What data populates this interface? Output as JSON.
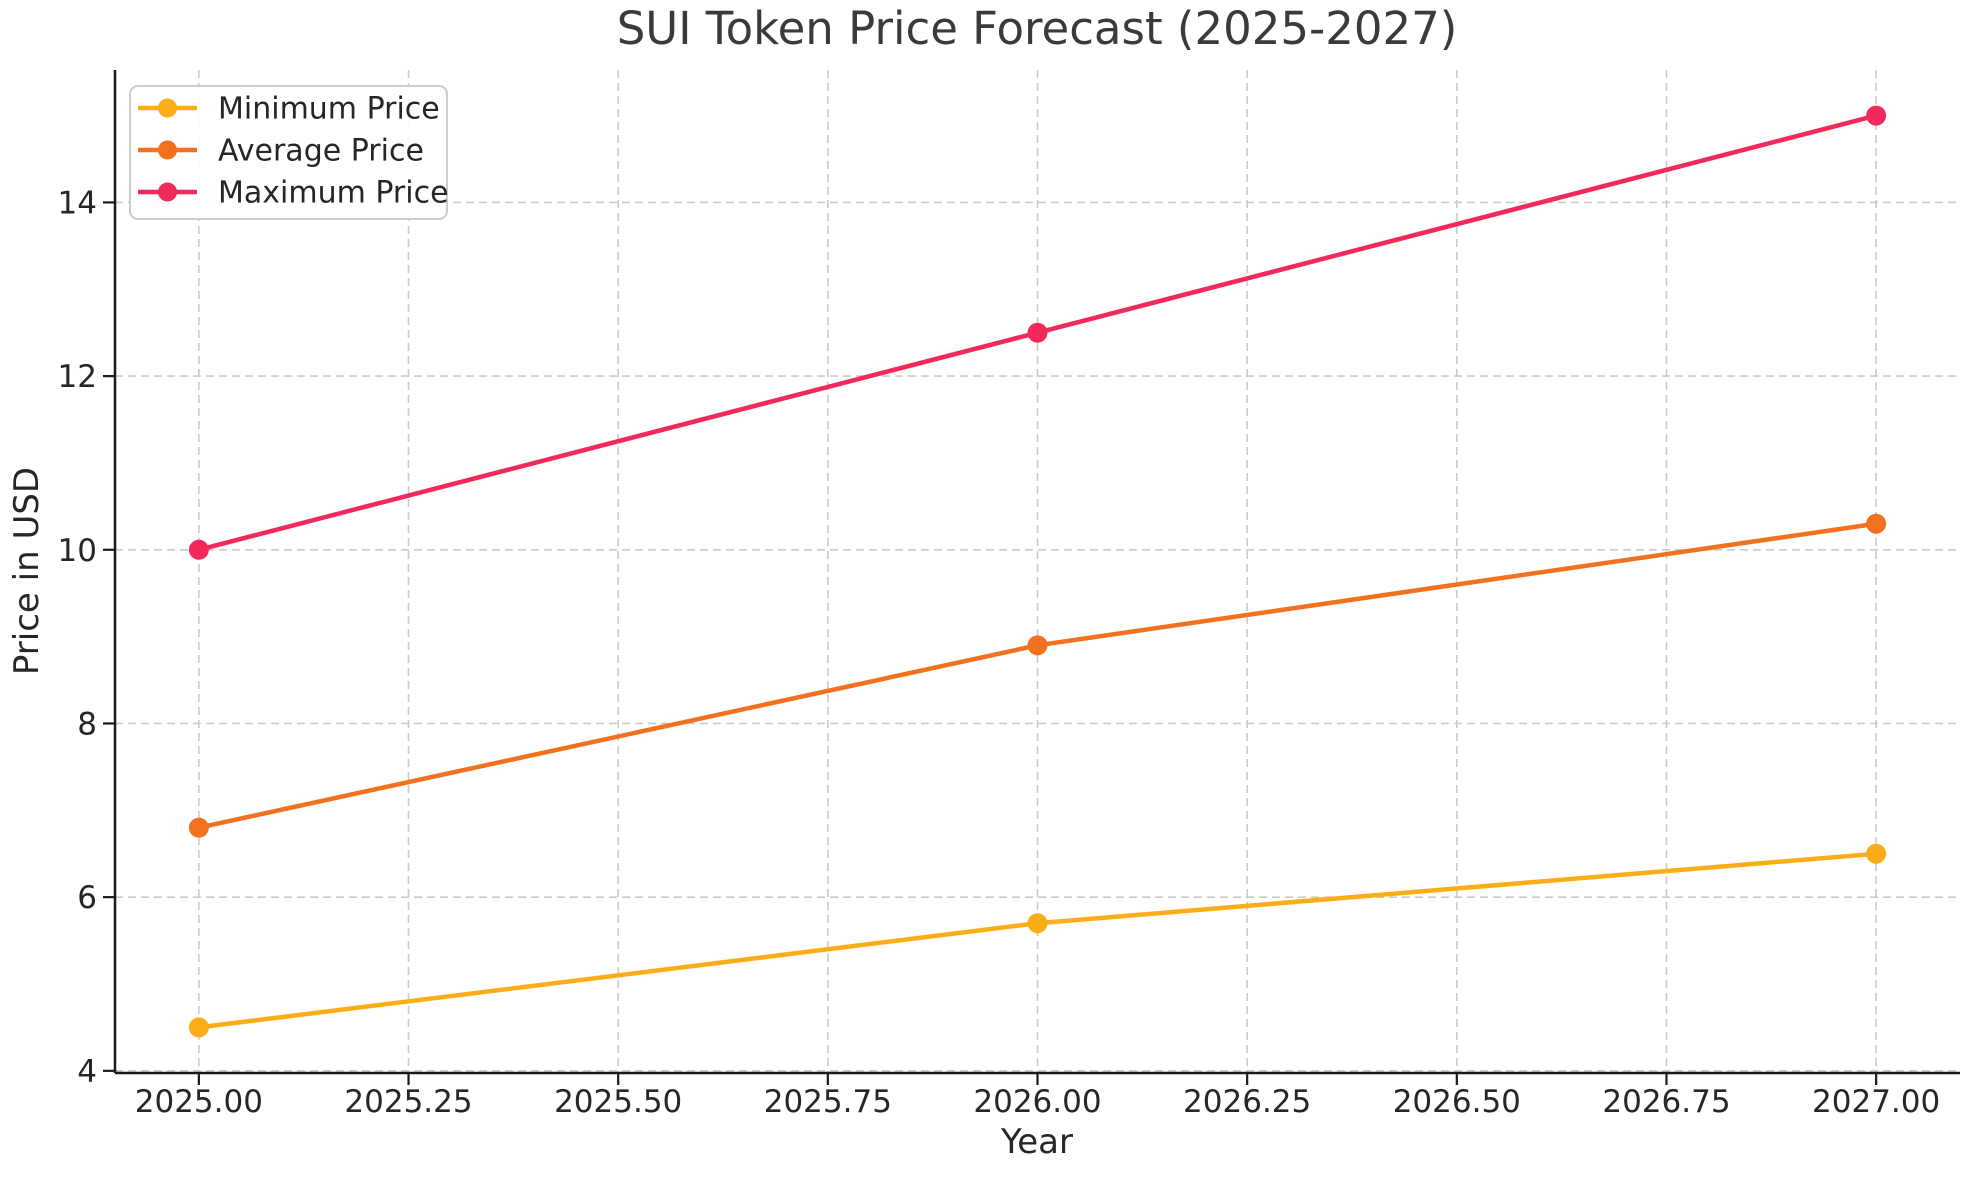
{
  "chart_data": {
    "type": "line",
    "title": "SUI Token Price Forecast (2025-2027)",
    "xlabel": "Year",
    "ylabel": "Price in USD",
    "x": [
      2025,
      2026,
      2027
    ],
    "series": [
      {
        "name": "Minimum Price",
        "color": "#FBAD18",
        "values": [
          4.5,
          5.7,
          6.5
        ]
      },
      {
        "name": "Average Price",
        "color": "#F1711F",
        "values": [
          6.8,
          8.9,
          10.3
        ]
      },
      {
        "name": "Maximum Price",
        "color": "#F2295B",
        "values": [
          10.0,
          12.5,
          15.0
        ]
      }
    ],
    "xlim": [
      2024.9,
      2027.1
    ],
    "ylim": [
      3.975,
      15.525
    ],
    "x_ticks": [
      2025.0,
      2025.25,
      2025.5,
      2025.75,
      2026.0,
      2026.25,
      2026.5,
      2026.75,
      2027.0
    ],
    "x_tick_labels": [
      "2025.00",
      "2025.25",
      "2025.50",
      "2025.75",
      "2026.00",
      "2026.25",
      "2026.50",
      "2026.75",
      "2027.00"
    ],
    "y_ticks": [
      4,
      6,
      8,
      10,
      12,
      14
    ],
    "y_tick_labels": [
      "4",
      "6",
      "8",
      "10",
      "12",
      "14"
    ],
    "grid": true,
    "grid_style": "dashed",
    "legend": {
      "position": "upper left",
      "labels": [
        "Minimum Price",
        "Average Price",
        "Maximum Price"
      ]
    },
    "colors": {
      "minimum": "#FBAD18",
      "average": "#F1711F",
      "maximum": "#F2295B",
      "grid": "#CBCBCB",
      "axis": "#1A1A1A",
      "text": "#262626",
      "legend_border": "#CCCCCC",
      "background": "#FFFFFF"
    }
  }
}
